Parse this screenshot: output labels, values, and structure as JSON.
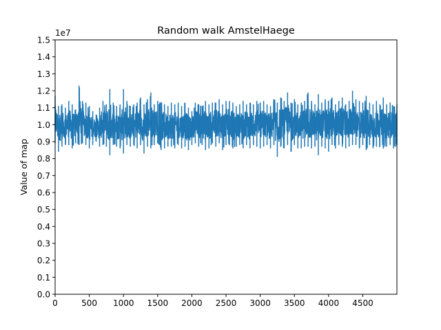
{
  "chart_data": {
    "type": "line",
    "title": "Random walk AmstelHaege",
    "xlabel": "",
    "ylabel": "Value of map",
    "y_offset_label": "1e7",
    "xlim": [
      0,
      4999
    ],
    "ylim": [
      0.0,
      1.5
    ],
    "x_ticks": [
      0,
      500,
      1000,
      1500,
      2000,
      2500,
      3000,
      3500,
      4000,
      4500
    ],
    "x_tick_labels": [
      "0",
      "500",
      "1000",
      "1500",
      "2000",
      "2500",
      "3000",
      "3500",
      "4000",
      "4500"
    ],
    "y_ticks": [
      0.0,
      0.1,
      0.2,
      0.3,
      0.4,
      0.5,
      0.6,
      0.7,
      0.8,
      0.9,
      1.0,
      1.1,
      1.2,
      1.3,
      1.4,
      1.5
    ],
    "y_tick_labels": [
      "0.0",
      "0.1",
      "0.2",
      "0.3",
      "0.4",
      "0.5",
      "0.6",
      "0.7",
      "0.8",
      "0.9",
      "1.0",
      "1.1",
      "1.2",
      "1.3",
      "1.4",
      "1.5"
    ],
    "grid": false,
    "series": [
      {
        "color": "#1f77b4",
        "x": [
          0,
          50,
          100,
          150,
          200,
          250,
          300,
          350,
          400,
          450,
          500,
          550,
          600,
          650,
          700,
          750,
          800,
          850,
          900,
          950,
          1000,
          1050,
          1100,
          1150,
          1200,
          1250,
          1300,
          1350,
          1400,
          1450,
          1500,
          1550,
          1600,
          1650,
          1700,
          1750,
          1800,
          1850,
          1900,
          1950,
          2000,
          2050,
          2100,
          2150,
          2200,
          2250,
          2300,
          2350,
          2400,
          2450,
          2500,
          2550,
          2600,
          2650,
          2700,
          2750,
          2800,
          2850,
          2900,
          2950,
          3000,
          3050,
          3100,
          3150,
          3200,
          3250,
          3300,
          3350,
          3400,
          3450,
          3500,
          3550,
          3600,
          3650,
          3700,
          3750,
          3800,
          3850,
          3900,
          3950,
          4000,
          4050,
          4100,
          4150,
          4200,
          4250,
          4300,
          4350,
          4400,
          4450,
          4500,
          4550,
          4600,
          4650,
          4700,
          4750,
          4800,
          4850,
          4900,
          4950,
          4999
        ],
        "y_max": [
          1.17,
          1.11,
          1.12,
          1.1,
          1.14,
          1.12,
          1.09,
          1.23,
          1.14,
          1.13,
          1.11,
          1.08,
          1.06,
          1.1,
          1.14,
          1.12,
          1.21,
          1.13,
          1.11,
          1.12,
          1.21,
          1.14,
          1.11,
          1.12,
          1.13,
          1.16,
          1.12,
          1.15,
          1.19,
          1.12,
          1.14,
          1.13,
          1.12,
          1.11,
          1.13,
          1.12,
          1.13,
          1.11,
          1.13,
          1.1,
          1.08,
          1.13,
          1.12,
          1.11,
          1.14,
          1.12,
          1.13,
          1.13,
          1.15,
          1.12,
          1.14,
          1.14,
          1.13,
          1.11,
          1.12,
          1.14,
          1.12,
          1.13,
          1.12,
          1.14,
          1.13,
          1.14,
          1.12,
          1.11,
          1.15,
          1.13,
          1.16,
          1.14,
          1.19,
          1.13,
          1.15,
          1.12,
          1.13,
          1.14,
          1.19,
          1.14,
          1.12,
          1.18,
          1.13,
          1.15,
          1.14,
          1.16,
          1.12,
          1.14,
          1.16,
          1.12,
          1.14,
          1.2,
          1.15,
          1.14,
          1.13,
          1.17,
          1.13,
          1.12,
          1.14,
          1.12,
          1.16,
          1.12,
          1.13,
          1.11,
          1.12
        ],
        "y_min": [
          0.89,
          0.84,
          0.87,
          0.88,
          0.88,
          0.86,
          0.89,
          0.88,
          0.89,
          0.88,
          0.86,
          0.88,
          0.9,
          0.87,
          0.88,
          0.87,
          0.82,
          0.88,
          0.87,
          0.86,
          0.83,
          0.88,
          0.87,
          0.88,
          0.86,
          0.88,
          0.83,
          0.87,
          0.86,
          0.88,
          0.89,
          0.85,
          0.86,
          0.87,
          0.87,
          0.86,
          0.88,
          0.86,
          0.87,
          0.85,
          0.88,
          0.89,
          0.87,
          0.88,
          0.85,
          0.86,
          0.89,
          0.87,
          0.89,
          0.85,
          0.88,
          0.88,
          0.86,
          0.87,
          0.88,
          0.86,
          0.88,
          0.86,
          0.88,
          0.87,
          0.86,
          0.87,
          0.88,
          0.86,
          0.88,
          0.81,
          0.87,
          0.86,
          0.88,
          0.84,
          0.88,
          0.86,
          0.86,
          0.87,
          0.87,
          0.86,
          0.87,
          0.82,
          0.87,
          0.86,
          0.84,
          0.88,
          0.86,
          0.88,
          0.87,
          0.86,
          0.87,
          0.88,
          0.88,
          0.86,
          0.88,
          0.85,
          0.88,
          0.86,
          0.87,
          0.87,
          0.86,
          0.87,
          0.88,
          0.86,
          0.88
        ]
      }
    ]
  }
}
